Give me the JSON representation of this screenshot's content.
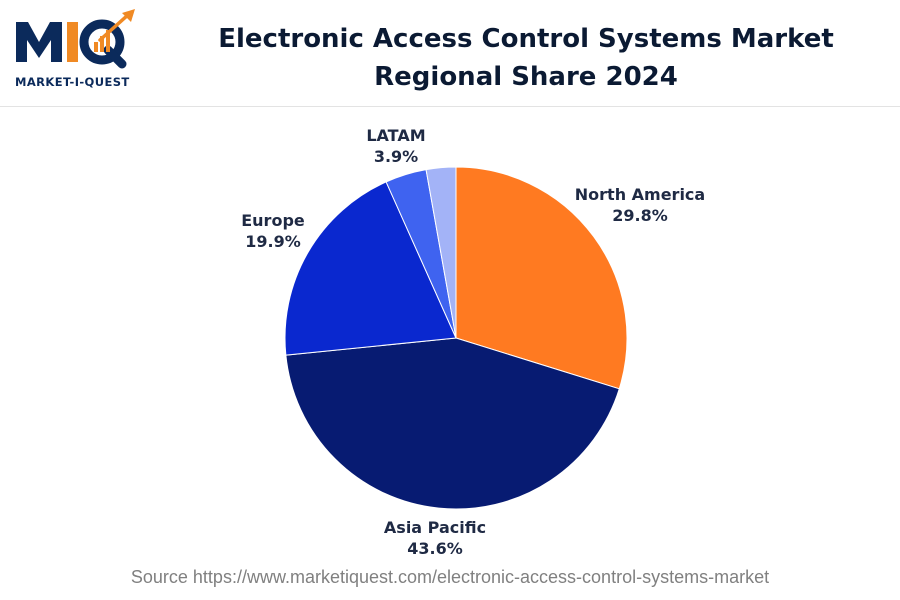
{
  "header": {
    "brand_logo_text": "MIQ",
    "brand_name": "MARKET-I-QUEST",
    "title": "Electronic Access Control Systems Market Regional Share 2024"
  },
  "colors": {
    "north_america": "#ff7a21",
    "asia_pacific": "#071b72",
    "europe": "#0a28cf",
    "latam": "#3f63f0",
    "other": "#a3b3f7",
    "brand_navy": "#0b2a5b",
    "brand_orange": "#f08a24"
  },
  "chart_data": {
    "type": "pie",
    "title": "Electronic Access Control Systems Market Regional Share 2024",
    "slices": [
      {
        "label": "North America",
        "value": 29.8,
        "value_text": "29.8%",
        "color": "#ff7a21",
        "show_label": true
      },
      {
        "label": "Asia Pacific",
        "value": 43.6,
        "value_text": "43.6%",
        "color": "#071b72",
        "show_label": true
      },
      {
        "label": "Europe",
        "value": 19.9,
        "value_text": "19.9%",
        "color": "#0a28cf",
        "show_label": true
      },
      {
        "label": "LATAM",
        "value": 3.9,
        "value_text": "3.9%",
        "color": "#3f63f0",
        "show_label": true
      },
      {
        "label": "",
        "value": 2.8,
        "value_text": "",
        "color": "#a3b3f7",
        "show_label": false
      }
    ],
    "start": "12 o'clock",
    "direction": "clockwise"
  },
  "footer": {
    "source": "Source https://www.marketiquest.com/electronic-access-control-systems-market"
  }
}
